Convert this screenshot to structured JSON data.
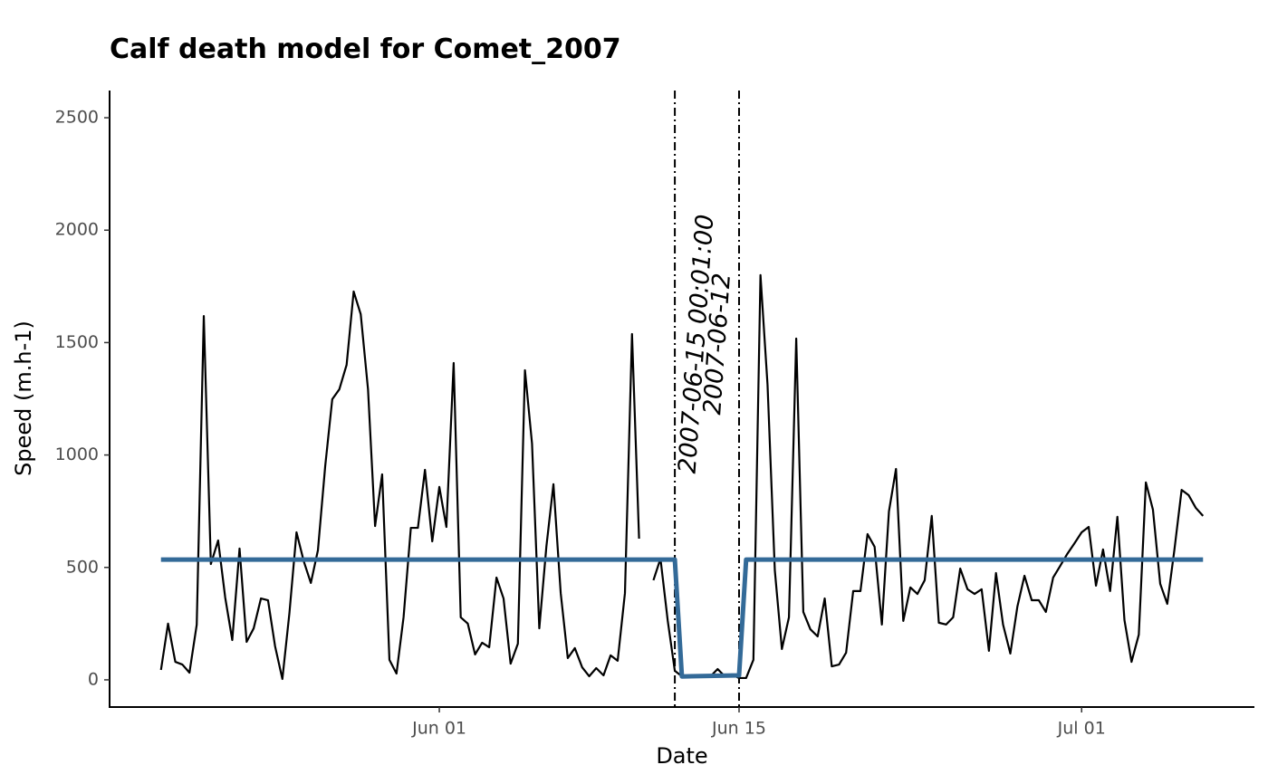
{
  "chart_data": {
    "type": "line",
    "title": "Calf death model for Comet_2007",
    "x_label": "Date",
    "y_label": "Speed (m.h-1)",
    "xlim": [
      -14.4,
      39.07
    ],
    "xticks": [
      {
        "value": 1,
        "label": "Jun 01"
      },
      {
        "value": 15,
        "label": "Jun 15"
      },
      {
        "value": 31,
        "label": "Jul 01"
      }
    ],
    "ylim": [
      -121,
      2621
    ],
    "yticks": [
      0,
      500,
      1000,
      1500,
      2000,
      2500
    ],
    "grid": false,
    "series": [
      {
        "color": "#000000",
        "width": 2.2,
        "x": [
          -12,
          -11.67,
          -11.33,
          -11,
          -10.67,
          -10.33,
          -10,
          -9.67,
          -9.33,
          -9,
          -8.67,
          -8.33,
          -8,
          -7.67,
          -7.33,
          -7,
          -6.67,
          -6.33,
          -6,
          -5.67,
          -5.33,
          -5,
          -4.67,
          -4.33,
          -4,
          -3.67,
          -3.33,
          -3,
          -2.67,
          -2.33,
          -2,
          -1.67,
          -1.33,
          -1,
          -0.67,
          -0.33,
          0,
          0.33,
          0.67,
          1,
          1.33,
          1.67,
          2,
          2.33,
          2.67,
          3,
          3.33,
          3.67,
          4,
          4.33,
          4.67,
          5,
          5.33,
          5.67,
          6,
          6.33,
          6.67,
          7,
          7.33,
          7.67,
          8,
          8.33,
          8.67,
          9,
          9.33,
          9.67,
          10,
          10.33,
          10.67,
          11,
          11.33,
          11.67,
          12,
          12.33,
          12.67,
          13,
          13.33,
          13.67,
          14,
          14.33,
          14.67,
          15,
          15.33,
          15.67,
          16,
          16.33,
          16.67,
          17,
          17.33,
          17.67,
          18,
          18.33,
          18.67,
          19,
          19.33,
          19.67,
          20,
          20.33,
          20.67,
          21,
          21.33,
          21.67,
          22,
          22.33,
          22.67,
          23,
          23.33,
          23.67,
          24,
          24.33,
          24.67,
          25,
          25.33,
          25.67,
          26,
          26.33,
          26.67,
          27,
          27.33,
          27.67,
          28,
          28.33,
          28.67,
          29,
          29.33,
          29.67,
          30,
          30.33,
          30.67,
          31,
          31.33,
          31.67,
          32,
          32.33,
          32.67,
          33,
          33.33,
          33.67,
          34,
          34.33,
          34.67,
          35,
          35.33,
          35.67,
          36,
          36.33,
          36.67
        ],
        "values": [
          44,
          250,
          80,
          68,
          32,
          245,
          1618,
          515,
          620,
          366,
          177,
          584,
          169,
          229,
          362,
          354,
          149,
          4,
          298,
          656,
          527,
          431,
          576,
          950,
          1248,
          1292,
          1401,
          1727,
          1626,
          1292,
          684,
          914,
          89,
          28,
          278,
          676,
          676,
          934,
          616,
          858,
          680,
          1409,
          278,
          250,
          113,
          165,
          145,
          455,
          362,
          72,
          161,
          1377,
          1051,
          229,
          592,
          870,
          386,
          97,
          141,
          56,
          16,
          52,
          20,
          109,
          85,
          386,
          1538,
          628,
          null,
          443,
          539,
          262,
          40,
          16,
          20,
          16,
          16,
          16,
          48,
          16,
          24,
          8,
          8,
          89,
          1800,
          1312,
          487,
          137,
          278,
          1518,
          302,
          225,
          193,
          362,
          60,
          68,
          121,
          395,
          395,
          648,
          592,
          246,
          749,
          938,
          262,
          411,
          382,
          443,
          729,
          254,
          246,
          278,
          495,
          403,
          382,
          403,
          129,
          475,
          246,
          117,
          326,
          463,
          354,
          354,
          302,
          455,
          507,
          560,
          608,
          656,
          680,
          419,
          580,
          395,
          725,
          266,
          80,
          201,
          878,
          757,
          427,
          338,
          576,
          845,
          821,
          765,
          729
        ]
      },
      {
        "color": "#336a98",
        "width": 5,
        "x": [
          -12,
          12,
          12.33,
          15,
          15.33,
          36.67
        ],
        "values": [
          535,
          535,
          15,
          20,
          535,
          535
        ]
      }
    ],
    "annotations": [
      {
        "x": 12,
        "label": "2007-06-12"
      },
      {
        "x": 15,
        "label": "2007-06-15 00:01:00"
      }
    ]
  }
}
